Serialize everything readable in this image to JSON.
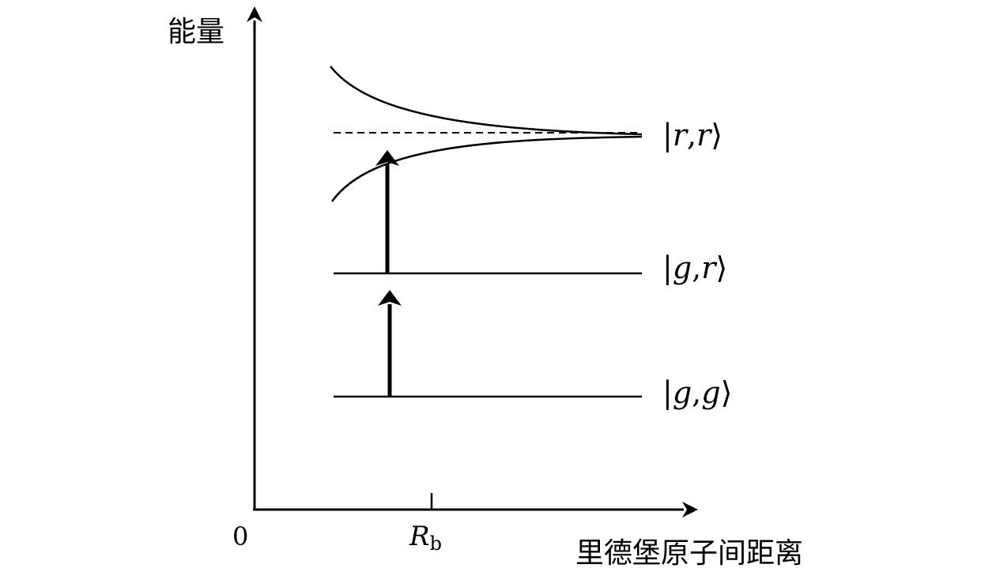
{
  "y_axis": {
    "label": "能量"
  },
  "x_axis": {
    "label": "里德堡原子间距离",
    "origin": "0",
    "tick": {
      "main": "R",
      "sub": "b"
    }
  },
  "states": [
    {
      "name": "rr",
      "open": "|",
      "first": "r",
      "sep": ",",
      "second": "r",
      "close": "⟩"
    },
    {
      "name": "gr",
      "open": "|",
      "first": "g",
      "sep": ",",
      "second": "r",
      "close": "⟩"
    },
    {
      "name": "gg",
      "open": "|",
      "first": "g",
      "sep": ",",
      "second": "g",
      "close": "⟩"
    }
  ],
  "colors": {
    "stroke": "#000000",
    "background": "#ffffff"
  }
}
